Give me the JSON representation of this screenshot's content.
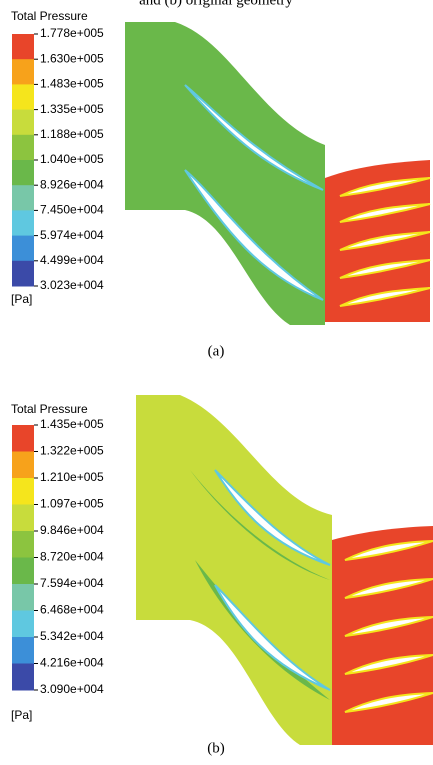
{
  "caption_top": "and (b) original geometry",
  "panels": [
    {
      "legend_title": "Total Pressure",
      "levels": [
        "1.778e+005",
        "1.630e+005",
        "1.483e+005",
        "1.335e+005",
        "1.188e+005",
        "1.040e+005",
        "8.926e+004",
        "7.450e+004",
        "5.974e+004",
        "4.499e+004",
        "3.023e+004"
      ],
      "unit": "[Pa]",
      "caption": "(a)"
    },
    {
      "legend_title": "Total Pressure",
      "levels": [
        "1.435e+005",
        "1.322e+005",
        "1.210e+005",
        "1.097e+005",
        "9.846e+004",
        "8.720e+004",
        "7.594e+004",
        "6.468e+004",
        "5.342e+004",
        "4.216e+004",
        "3.090e+004"
      ],
      "unit": "[Pa]",
      "caption": "(b)"
    }
  ]
}
